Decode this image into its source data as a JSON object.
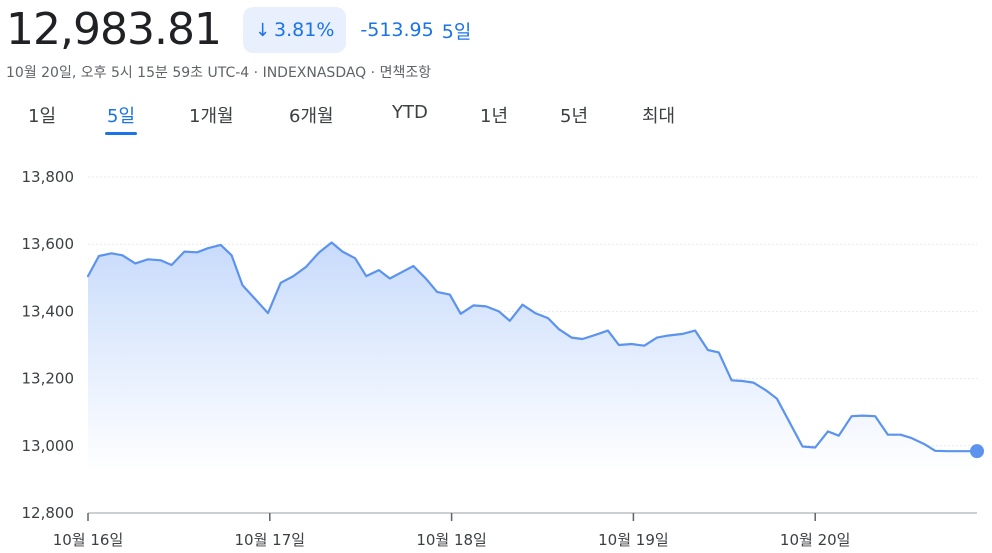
{
  "quote": {
    "price": "12,983.81",
    "change_arrow": "↓",
    "change_percent": "3.81%",
    "change_abs": "-513.95",
    "period": "5일",
    "arrow_icon": "arrow-down-icon"
  },
  "meta": {
    "timestamp": "10월 20일, 오후 5시 15분 59초 UTC-4",
    "exchange": "INDEXNASDAQ",
    "disclaimer": "면책조항",
    "separator": "·"
  },
  "tabs": [
    {
      "label": "1일",
      "active": false
    },
    {
      "label": "5일",
      "active": true
    },
    {
      "label": "1개월",
      "active": false
    },
    {
      "label": "6개월",
      "active": false
    },
    {
      "label": "YTD",
      "active": false
    },
    {
      "label": "1년",
      "active": false
    },
    {
      "label": "5년",
      "active": false
    },
    {
      "label": "최대",
      "active": false
    }
  ],
  "colors": {
    "accent": "#1a73e8",
    "line": "#5b93ee",
    "area_top": "#c5d9fb",
    "grid": "#e6e8eb"
  },
  "chart_data": {
    "type": "area",
    "ylim": [
      12800,
      13800
    ],
    "y_ticks": [
      12800,
      13000,
      13200,
      13400,
      13600,
      13800
    ],
    "y_tick_labels": [
      "12,800",
      "13,000",
      "13,200",
      "13,400",
      "13,600",
      "13,800"
    ],
    "x_range": [
      0,
      4.89
    ],
    "x_ticks": [
      0,
      1,
      2,
      3,
      4
    ],
    "x_tick_labels": [
      "10월 16일",
      "10월 17일",
      "10월 18일",
      "10월 19일",
      "10월 20일"
    ],
    "grid": true,
    "series": [
      {
        "x": [
          0,
          0.06,
          0.13,
          0.19,
          0.26,
          0.33,
          0.4,
          0.46,
          0.53,
          0.6,
          0.66,
          0.73,
          0.79,
          0.85,
          0.99,
          1.06,
          1.13,
          1.2,
          1.27,
          1.34,
          1.4,
          1.47,
          1.53,
          1.6,
          1.66,
          1.73,
          1.79,
          1.86,
          1.92,
          1.99,
          2.05,
          2.12,
          2.19,
          2.26,
          2.32,
          2.39,
          2.46,
          2.53,
          2.59,
          2.66,
          2.72,
          2.79,
          2.86,
          2.92,
          2.99,
          3.06,
          3.13,
          3.19,
          3.27,
          3.34,
          3.41,
          3.47,
          3.54,
          3.6,
          3.66,
          3.73,
          3.79,
          3.93,
          4.0,
          4.07,
          4.13,
          4.2,
          4.26,
          4.33,
          4.4,
          4.47,
          4.53,
          4.6,
          4.66,
          4.73,
          4.79,
          4.85,
          4.89
        ],
        "values": [
          13505,
          13565,
          13573,
          13567,
          13543,
          13555,
          13552,
          13538,
          13578,
          13576,
          13588,
          13598,
          13567,
          13478,
          13395,
          13485,
          13505,
          13533,
          13575,
          13605,
          13578,
          13558,
          13505,
          13523,
          13498,
          13518,
          13535,
          13497,
          13458,
          13450,
          13393,
          13418,
          13415,
          13400,
          13372,
          13420,
          13395,
          13380,
          13347,
          13322,
          13318,
          13330,
          13343,
          13300,
          13303,
          13298,
          13322,
          13328,
          13333,
          13343,
          13285,
          13278,
          13195,
          13193,
          13188,
          13165,
          13140,
          12998,
          12995,
          13043,
          13030,
          13088,
          13090,
          13088,
          13033,
          13033,
          13023,
          13005,
          12985,
          12984,
          12984,
          12984,
          12984
        ]
      }
    ]
  }
}
